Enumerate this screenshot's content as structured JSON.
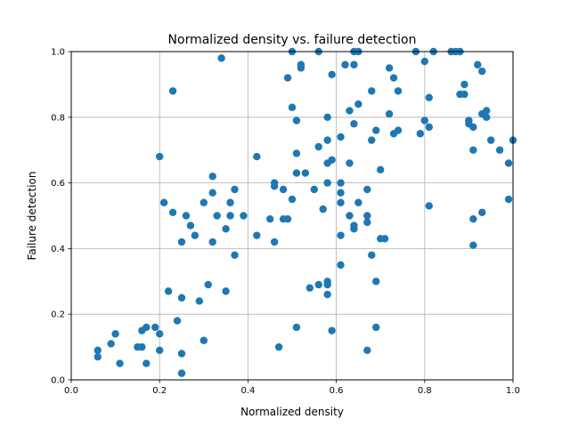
{
  "chart_data": {
    "type": "scatter",
    "title": "Normalized density vs. failure detection",
    "xlabel": "Normalized density",
    "ylabel": "Failure detection",
    "xlim": [
      0,
      1
    ],
    "ylim": [
      0,
      1
    ],
    "x_ticks": [
      "0.0",
      "0.2",
      "0.4",
      "0.6",
      "0.8",
      "1.0"
    ],
    "y_ticks": [
      "0.0",
      "0.2",
      "0.4",
      "0.6",
      "0.8",
      "1.0"
    ],
    "grid": true,
    "color": "#1f77b4",
    "points": [
      [
        0.06,
        0.09
      ],
      [
        0.06,
        0.07
      ],
      [
        0.09,
        0.11
      ],
      [
        0.1,
        0.14
      ],
      [
        0.11,
        0.05
      ],
      [
        0.15,
        0.1
      ],
      [
        0.16,
        0.1
      ],
      [
        0.16,
        0.15
      ],
      [
        0.17,
        0.16
      ],
      [
        0.17,
        0.05
      ],
      [
        0.19,
        0.16
      ],
      [
        0.2,
        0.14
      ],
      [
        0.2,
        0.09
      ],
      [
        0.2,
        0.68
      ],
      [
        0.21,
        0.54
      ],
      [
        0.22,
        0.27
      ],
      [
        0.23,
        0.51
      ],
      [
        0.23,
        0.88
      ],
      [
        0.24,
        0.18
      ],
      [
        0.25,
        0.25
      ],
      [
        0.25,
        0.08
      ],
      [
        0.25,
        0.02
      ],
      [
        0.25,
        0.42
      ],
      [
        0.26,
        0.5
      ],
      [
        0.27,
        0.47
      ],
      [
        0.28,
        0.44
      ],
      [
        0.29,
        0.24
      ],
      [
        0.3,
        0.12
      ],
      [
        0.3,
        0.54
      ],
      [
        0.31,
        0.29
      ],
      [
        0.32,
        0.62
      ],
      [
        0.32,
        0.57
      ],
      [
        0.32,
        0.42
      ],
      [
        0.33,
        0.5
      ],
      [
        0.34,
        0.98
      ],
      [
        0.35,
        0.27
      ],
      [
        0.35,
        0.46
      ],
      [
        0.36,
        0.5
      ],
      [
        0.36,
        0.54
      ],
      [
        0.37,
        0.58
      ],
      [
        0.37,
        0.38
      ],
      [
        0.39,
        0.5
      ],
      [
        0.42,
        0.68
      ],
      [
        0.42,
        0.44
      ],
      [
        0.45,
        0.49
      ],
      [
        0.46,
        0.6
      ],
      [
        0.46,
        0.59
      ],
      [
        0.46,
        0.42
      ],
      [
        0.47,
        0.1
      ],
      [
        0.48,
        0.58
      ],
      [
        0.48,
        0.49
      ],
      [
        0.49,
        0.49
      ],
      [
        0.49,
        0.92
      ],
      [
        0.5,
        1.0
      ],
      [
        0.5,
        0.55
      ],
      [
        0.5,
        0.83
      ],
      [
        0.51,
        0.63
      ],
      [
        0.51,
        0.69
      ],
      [
        0.51,
        0.79
      ],
      [
        0.51,
        0.16
      ],
      [
        0.52,
        0.96
      ],
      [
        0.52,
        0.95
      ],
      [
        0.53,
        0.63
      ],
      [
        0.54,
        0.28
      ],
      [
        0.55,
        0.58
      ],
      [
        0.56,
        0.71
      ],
      [
        0.56,
        1.0
      ],
      [
        0.56,
        0.29
      ],
      [
        0.57,
        0.52
      ],
      [
        0.58,
        0.3
      ],
      [
        0.58,
        0.29
      ],
      [
        0.58,
        0.26
      ],
      [
        0.58,
        0.8
      ],
      [
        0.58,
        0.73
      ],
      [
        0.58,
        0.66
      ],
      [
        0.58,
        0.6
      ],
      [
        0.59,
        0.67
      ],
      [
        0.59,
        0.93
      ],
      [
        0.59,
        0.15
      ],
      [
        0.61,
        0.35
      ],
      [
        0.61,
        0.57
      ],
      [
        0.61,
        0.54
      ],
      [
        0.61,
        0.6
      ],
      [
        0.61,
        0.74
      ],
      [
        0.61,
        0.44
      ],
      [
        0.62,
        0.96
      ],
      [
        0.63,
        0.5
      ],
      [
        0.63,
        0.82
      ],
      [
        0.63,
        0.66
      ],
      [
        0.64,
        0.47
      ],
      [
        0.64,
        0.46
      ],
      [
        0.64,
        0.78
      ],
      [
        0.64,
        1.0
      ],
      [
        0.64,
        0.96
      ],
      [
        0.65,
        0.54
      ],
      [
        0.65,
        1.0
      ],
      [
        0.65,
        0.84
      ],
      [
        0.67,
        0.09
      ],
      [
        0.67,
        0.58
      ],
      [
        0.67,
        0.5
      ],
      [
        0.67,
        0.48
      ],
      [
        0.68,
        0.38
      ],
      [
        0.68,
        0.73
      ],
      [
        0.68,
        0.88
      ],
      [
        0.69,
        0.3
      ],
      [
        0.69,
        0.76
      ],
      [
        0.69,
        0.16
      ],
      [
        0.7,
        0.64
      ],
      [
        0.7,
        0.43
      ],
      [
        0.71,
        0.43
      ],
      [
        0.72,
        0.81
      ],
      [
        0.72,
        0.95
      ],
      [
        0.73,
        0.92
      ],
      [
        0.73,
        0.75
      ],
      [
        0.74,
        0.88
      ],
      [
        0.74,
        0.76
      ],
      [
        0.78,
        1.0
      ],
      [
        0.79,
        0.75
      ],
      [
        0.8,
        0.79
      ],
      [
        0.8,
        0.97
      ],
      [
        0.81,
        0.86
      ],
      [
        0.81,
        0.77
      ],
      [
        0.81,
        0.53
      ],
      [
        0.82,
        1.0
      ],
      [
        0.86,
        1.0
      ],
      [
        0.87,
        1.0
      ],
      [
        0.88,
        1.0
      ],
      [
        0.88,
        0.87
      ],
      [
        0.89,
        0.87
      ],
      [
        0.89,
        0.9
      ],
      [
        0.9,
        0.78
      ],
      [
        0.9,
        0.79
      ],
      [
        0.91,
        0.41
      ],
      [
        0.91,
        0.77
      ],
      [
        0.91,
        0.49
      ],
      [
        0.91,
        0.7
      ],
      [
        0.92,
        0.96
      ],
      [
        0.93,
        0.81
      ],
      [
        0.93,
        0.94
      ],
      [
        0.93,
        0.51
      ],
      [
        0.94,
        0.8
      ],
      [
        0.94,
        0.82
      ],
      [
        0.95,
        0.73
      ],
      [
        0.97,
        0.7
      ],
      [
        0.99,
        0.55
      ],
      [
        0.99,
        0.66
      ],
      [
        1.0,
        0.73
      ]
    ]
  }
}
